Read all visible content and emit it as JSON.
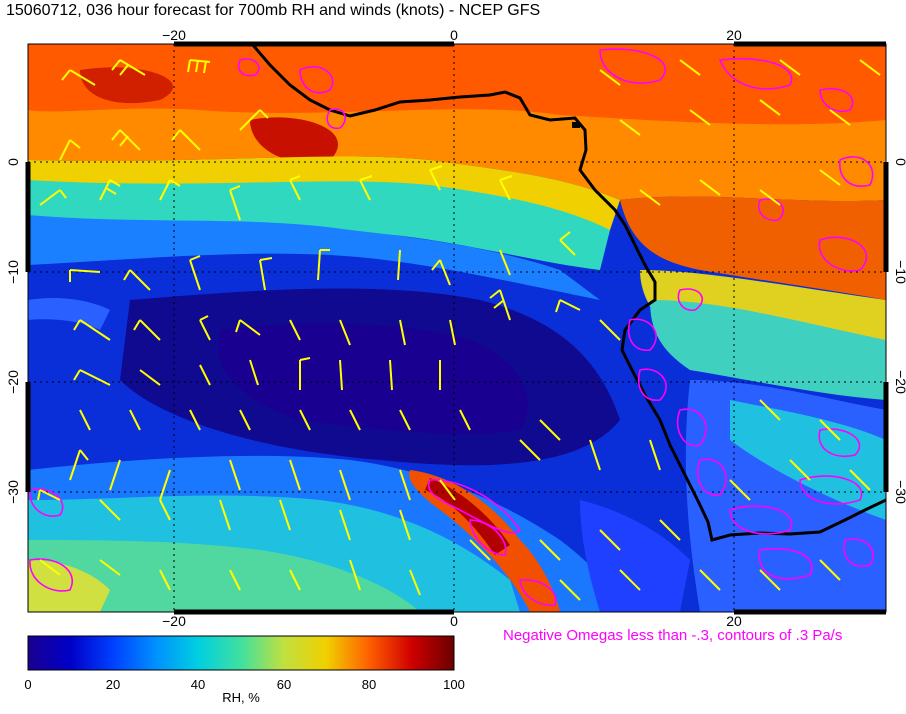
{
  "title": "15060712, 036 hour forecast for 700mb RH and winds (knots) - NCEP GFS",
  "map": {
    "lon_ticks_top": [
      "−20",
      "0",
      "20"
    ],
    "lon_ticks_bottom": [
      "−20",
      "0",
      "20"
    ],
    "lat_ticks_left": [
      "0",
      "−10",
      "−20",
      "−30"
    ],
    "lat_ticks_right": [
      "0",
      "−10",
      "−20",
      "−30"
    ],
    "lon_range": [
      -30,
      30
    ],
    "lat_range": [
      10,
      -40
    ],
    "field": "RH, %",
    "wind_barb_color": "#ffff00",
    "omega_contour_color": "#ff00ff",
    "coastline_color": "#000000"
  },
  "omega_note": "Negative Omegas less than -.3, contours of .3 Pa/s",
  "colorbar": {
    "title": "RH, %",
    "ticks": [
      "0",
      "20",
      "40",
      "60",
      "80",
      "100"
    ],
    "colors": [
      "#1a0090",
      "#0000c8",
      "#0040ff",
      "#0090ff",
      "#00d0e0",
      "#40e0a0",
      "#a0e040",
      "#f0e000",
      "#ff8c00",
      "#e82000",
      "#a00000",
      "#6a0000"
    ]
  }
}
